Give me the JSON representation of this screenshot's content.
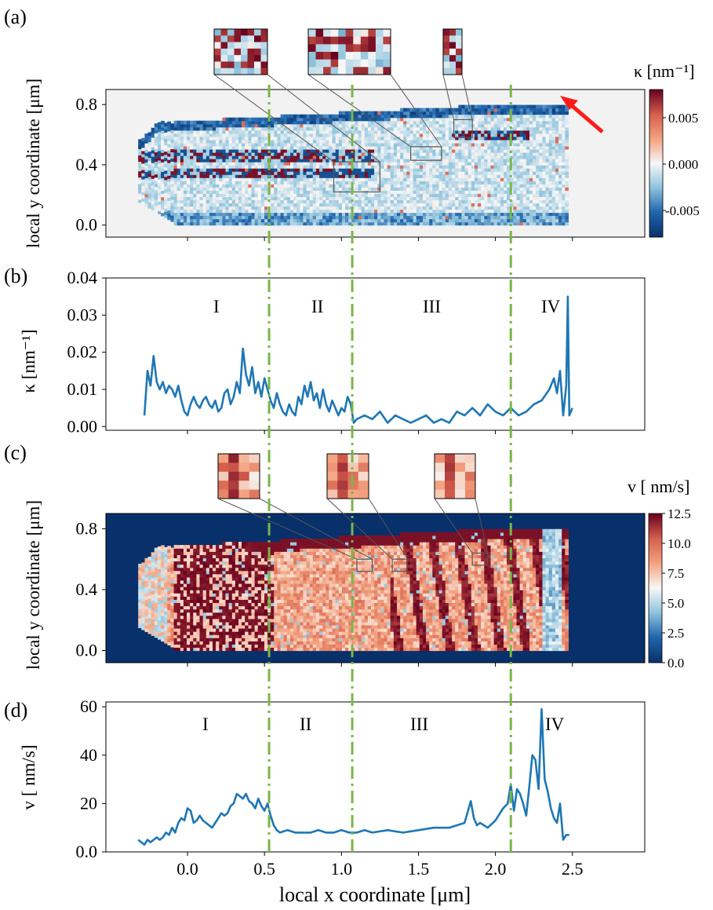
{
  "figure": {
    "panel_labels": [
      "(a)",
      "(b)",
      "(c)",
      "(d)"
    ],
    "x_axis_label": "local x coordinate [μm]",
    "y_axis_label_maps": "local y coordinate [μm]",
    "region_labels": [
      "I",
      "II",
      "III",
      "IV"
    ],
    "boundary_x": [
      0.53,
      1.07,
      2.1
    ],
    "boundary_color": "#7ab648",
    "arrow_color": "#ff1a1a"
  },
  "chart_data": [
    {
      "id": "a",
      "type": "heatmap",
      "quantity": "kappa",
      "colorbar_title": "κ [nm⁻¹]",
      "colorbar_ticks": [
        "0.005",
        "0.000",
        "-0.005"
      ],
      "colorbar_range": [
        -0.0085,
        0.0085
      ],
      "ylabel": "local y coordinate [μm]",
      "yticks": [
        "0.0",
        "0.4",
        "0.8"
      ],
      "ylim": [
        -0.08,
        0.9
      ],
      "xlim": [
        -0.53,
        2.97
      ],
      "colormap": [
        "#08306b",
        "#2166ac",
        "#92c5de",
        "#f7f7f7",
        "#f4a582",
        "#d6604d",
        "#67001f"
      ],
      "inset_regions": [
        [
          0.95,
          0.22,
          1.25,
          0.42
        ],
        [
          1.45,
          0.43,
          1.65,
          0.52
        ],
        [
          1.73,
          0.58,
          1.85,
          0.7
        ]
      ]
    },
    {
      "id": "b",
      "type": "line",
      "ylabel": "κ [nm⁻¹]",
      "yticks": [
        "0.00",
        "0.01",
        "0.02",
        "0.03",
        "0.04"
      ],
      "ylim": [
        -0.001,
        0.04
      ],
      "xlim": [
        -0.53,
        2.97
      ],
      "series": [
        {
          "color": "#1f77b4",
          "x": [
            -0.28,
            -0.26,
            -0.24,
            -0.22,
            -0.2,
            -0.18,
            -0.16,
            -0.14,
            -0.12,
            -0.1,
            -0.08,
            -0.06,
            -0.04,
            -0.02,
            0.0,
            0.02,
            0.04,
            0.06,
            0.08,
            0.1,
            0.12,
            0.14,
            0.16,
            0.18,
            0.2,
            0.22,
            0.24,
            0.26,
            0.28,
            0.3,
            0.32,
            0.34,
            0.36,
            0.38,
            0.4,
            0.42,
            0.44,
            0.46,
            0.48,
            0.5,
            0.52,
            0.54,
            0.56,
            0.58,
            0.6,
            0.62,
            0.64,
            0.66,
            0.68,
            0.7,
            0.72,
            0.74,
            0.76,
            0.78,
            0.8,
            0.82,
            0.84,
            0.86,
            0.88,
            0.9,
            0.92,
            0.94,
            0.96,
            0.98,
            1.0,
            1.02,
            1.04,
            1.06,
            1.08,
            1.1,
            1.15,
            1.2,
            1.25,
            1.3,
            1.35,
            1.4,
            1.45,
            1.5,
            1.55,
            1.6,
            1.65,
            1.7,
            1.75,
            1.8,
            1.85,
            1.9,
            1.95,
            2.0,
            2.05,
            2.1,
            2.15,
            2.2,
            2.25,
            2.3,
            2.35,
            2.38,
            2.4,
            2.42,
            2.44,
            2.46,
            2.47,
            2.48,
            2.5
          ],
          "y": [
            0.003,
            0.015,
            0.011,
            0.019,
            0.012,
            0.01,
            0.012,
            0.009,
            0.011,
            0.01,
            0.008,
            0.011,
            0.007,
            0.004,
            0.003,
            0.006,
            0.008,
            0.006,
            0.005,
            0.007,
            0.008,
            0.006,
            0.005,
            0.007,
            0.004,
            0.005,
            0.009,
            0.01,
            0.006,
            0.008,
            0.012,
            0.009,
            0.021,
            0.014,
            0.011,
            0.016,
            0.009,
            0.012,
            0.008,
            0.013,
            0.01,
            0.007,
            0.005,
            0.009,
            0.006,
            0.004,
            0.003,
            0.006,
            0.004,
            0.003,
            0.008,
            0.006,
            0.011,
            0.008,
            0.012,
            0.007,
            0.009,
            0.005,
            0.01,
            0.006,
            0.004,
            0.007,
            0.005,
            0.003,
            0.005,
            0.004,
            0.008,
            0.006,
            0.001,
            0.002,
            0.003,
            0.002,
            0.004,
            0.001,
            0.003,
            0.002,
            0.001,
            0.002,
            0.003,
            0.001,
            0.002,
            0.001,
            0.004,
            0.003,
            0.005,
            0.003,
            0.006,
            0.004,
            0.003,
            0.005,
            0.003,
            0.004,
            0.006,
            0.007,
            0.01,
            0.013,
            0.009,
            0.015,
            0.003,
            0.011,
            0.035,
            0.003,
            0.005
          ]
        }
      ]
    },
    {
      "id": "c",
      "type": "heatmap",
      "quantity": "v",
      "colorbar_title": "v [ nm/s]",
      "colorbar_ticks": [
        "12.5",
        "10.0",
        "7.5",
        "5.0",
        "2.5",
        "0.0"
      ],
      "colorbar_range": [
        0,
        12.5
      ],
      "ylabel": "local y coordinate [μm]",
      "yticks": [
        "0.0",
        "0.4",
        "0.8"
      ],
      "ylim": [
        -0.08,
        0.9
      ],
      "xlim": [
        -0.53,
        2.97
      ],
      "colormap": [
        "#08306b",
        "#2166ac",
        "#92c5de",
        "#f7f7f7",
        "#f4a582",
        "#d6604d",
        "#67001f"
      ],
      "inset_regions": [
        [
          1.1,
          0.52,
          1.2,
          0.6
        ],
        [
          1.33,
          0.52,
          1.43,
          0.6
        ],
        [
          1.85,
          0.56,
          1.95,
          0.64
        ]
      ]
    },
    {
      "id": "d",
      "type": "line",
      "ylabel": "v [ nm/s]",
      "xlabel": "local x coordinate [μm]",
      "xticks": [
        "0.0",
        "0.5",
        "1.0",
        "1.5",
        "2.0",
        "2.5"
      ],
      "yticks": [
        "0.0",
        "20",
        "40",
        "60"
      ],
      "ylim": [
        0,
        62
      ],
      "xlim": [
        -0.53,
        2.97
      ],
      "series": [
        {
          "color": "#1f77b4",
          "x": [
            -0.32,
            -0.3,
            -0.28,
            -0.26,
            -0.24,
            -0.22,
            -0.2,
            -0.18,
            -0.16,
            -0.14,
            -0.12,
            -0.1,
            -0.08,
            -0.06,
            -0.04,
            -0.02,
            0.0,
            0.02,
            0.04,
            0.06,
            0.08,
            0.1,
            0.12,
            0.14,
            0.16,
            0.18,
            0.2,
            0.22,
            0.24,
            0.26,
            0.28,
            0.3,
            0.32,
            0.34,
            0.36,
            0.38,
            0.4,
            0.42,
            0.44,
            0.46,
            0.48,
            0.5,
            0.52,
            0.54,
            0.56,
            0.58,
            0.6,
            0.65,
            0.7,
            0.75,
            0.8,
            0.85,
            0.9,
            0.95,
            1.0,
            1.05,
            1.1,
            1.15,
            1.2,
            1.3,
            1.4,
            1.5,
            1.6,
            1.7,
            1.75,
            1.8,
            1.84,
            1.86,
            1.88,
            1.9,
            1.95,
            2.0,
            2.05,
            2.08,
            2.1,
            2.12,
            2.14,
            2.16,
            2.18,
            2.2,
            2.22,
            2.24,
            2.26,
            2.28,
            2.3,
            2.32,
            2.34,
            2.36,
            2.38,
            2.4,
            2.42,
            2.44,
            2.46,
            2.48
          ],
          "y": [
            5,
            4,
            3,
            5,
            4,
            5,
            6,
            5,
            6,
            8,
            7,
            10,
            8,
            12,
            14,
            13,
            18,
            17,
            12,
            13,
            15,
            13,
            12,
            11,
            10,
            12,
            14,
            16,
            15,
            16,
            19,
            20,
            24,
            23,
            22,
            24,
            21,
            20,
            18,
            22,
            19,
            17,
            20,
            15,
            11,
            9,
            8,
            9,
            8,
            8,
            8,
            9,
            8,
            8,
            9,
            8,
            8,
            9,
            8,
            9,
            8,
            9,
            10,
            10,
            11,
            12,
            21,
            14,
            11,
            12,
            10,
            13,
            18,
            20,
            28,
            17,
            26,
            24,
            20,
            15,
            27,
            40,
            38,
            26,
            59,
            30,
            25,
            18,
            14,
            12,
            20,
            5,
            7,
            7
          ]
        }
      ]
    }
  ]
}
